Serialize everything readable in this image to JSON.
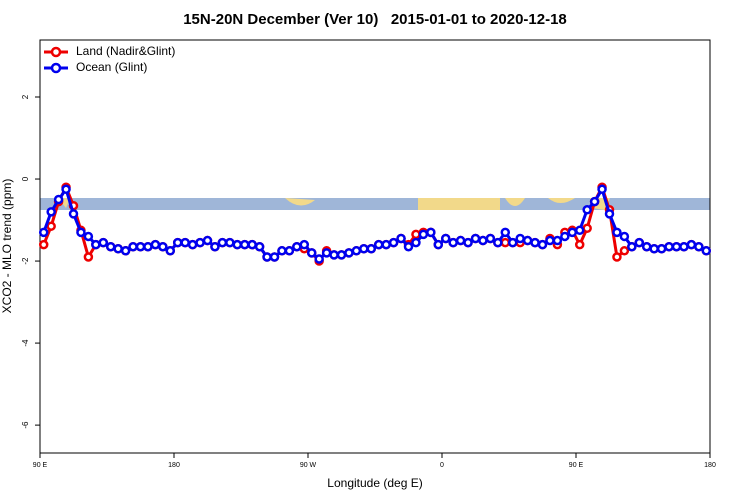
{
  "chart_data": {
    "type": "line",
    "title": "15N-20N December (Ver 10)   2015-01-01 to 2020-12-18",
    "xlabel": "Longitude (deg E)",
    "ylabel": "XCO2 - MLO trend (ppm)",
    "xlim": [
      90,
      540
    ],
    "ylim": [
      -6.68,
      3.39
    ],
    "xticks": [
      {
        "value": 90,
        "label": "90 E"
      },
      180,
      {
        "value": 270,
        "label": "90 W"
      },
      {
        "value": 360,
        "label": "0"
      },
      {
        "value": 450,
        "label": "90 E"
      },
      {
        "value": 540,
        "label": "180"
      }
    ],
    "yticks": [
      -6,
      -4,
      -2,
      0,
      2
    ],
    "legend": "top-left",
    "x": [
      92.5,
      97.5,
      102.5,
      107.5,
      112.5,
      117.5,
      122.5,
      127.5,
      132.5,
      137.5,
      142.5,
      147.5,
      152.5,
      157.5,
      162.5,
      167.5,
      172.5,
      177.5,
      182.5,
      187.5,
      192.5,
      197.5,
      202.5,
      207.5,
      212.5,
      217.5,
      222.5,
      227.5,
      232.5,
      237.5,
      242.5,
      247.5,
      252.5,
      257.5,
      262.5,
      267.5,
      272.5,
      277.5,
      282.5,
      287.5,
      292.5,
      297.5,
      302.5,
      307.5,
      312.5,
      317.5,
      322.5,
      327.5,
      332.5,
      337.5,
      342.5,
      347.5,
      352.5,
      357.5,
      362.5,
      367.5,
      372.5,
      377.5,
      382.5,
      387.5,
      392.5,
      397.5,
      402.5,
      407.5,
      412.5,
      417.5,
      422.5,
      427.5,
      432.5,
      437.5,
      442.5,
      447.5,
      452.5,
      457.5,
      462.5,
      467.5,
      472.5,
      477.5,
      482.5,
      487.5,
      492.5,
      497.5,
      502.5,
      507.5,
      512.5,
      517.5,
      522.5,
      527.5,
      532.5,
      537.5
    ],
    "series": [
      {
        "name": "Land (Nadir&Glint)",
        "color": "#ee0000",
        "values": [
          -1.6,
          -1.15,
          -0.55,
          -0.2,
          -0.65,
          -1.25,
          -1.9,
          -1.6,
          -1.55,
          -1.65,
          -1.7,
          -1.75,
          -1.65,
          -1.65,
          -1.65,
          -1.6,
          -1.65,
          -1.75,
          -1.55,
          -1.55,
          -1.6,
          -1.55,
          -1.5,
          -1.65,
          -1.55,
          -1.55,
          -1.6,
          -1.6,
          -1.6,
          -1.65,
          -1.9,
          -1.9,
          -1.75,
          -1.75,
          -1.65,
          -1.7,
          -1.8,
          -2.0,
          -1.75,
          -1.85,
          -1.85,
          -1.8,
          -1.75,
          -1.7,
          -1.7,
          -1.6,
          -1.6,
          -1.55,
          -1.45,
          -1.6,
          -1.35,
          -1.3,
          -1.3,
          -1.6,
          -1.45,
          -1.55,
          -1.5,
          -1.55,
          -1.45,
          -1.5,
          -1.45,
          -1.55,
          -1.55,
          -1.55,
          -1.55,
          -1.5,
          -1.55,
          -1.6,
          -1.45,
          -1.6,
          -1.3,
          -1.25,
          -1.6,
          -1.2,
          -0.55,
          -0.2,
          -0.75,
          -1.9,
          -1.75,
          -1.65,
          -1.55,
          -1.65,
          -1.7,
          -1.7,
          -1.65,
          -1.65,
          -1.65,
          -1.6,
          -1.65,
          -1.75
        ]
      },
      {
        "name": "Ocean (Glint)",
        "color": "#0000ee",
        "values": [
          -1.3,
          -0.8,
          -0.5,
          -0.25,
          -0.85,
          -1.3,
          -1.4,
          -1.6,
          -1.55,
          -1.65,
          -1.7,
          -1.75,
          -1.65,
          -1.65,
          -1.65,
          -1.6,
          -1.65,
          -1.75,
          -1.55,
          -1.55,
          -1.6,
          -1.55,
          -1.5,
          -1.65,
          -1.55,
          -1.55,
          -1.6,
          -1.6,
          -1.6,
          -1.65,
          -1.9,
          -1.9,
          -1.75,
          -1.75,
          -1.65,
          -1.6,
          -1.8,
          -1.95,
          -1.8,
          -1.85,
          -1.85,
          -1.8,
          -1.75,
          -1.7,
          -1.7,
          -1.6,
          -1.6,
          -1.55,
          -1.45,
          -1.65,
          -1.55,
          -1.35,
          -1.3,
          -1.6,
          -1.45,
          -1.55,
          -1.5,
          -1.55,
          -1.45,
          -1.5,
          -1.45,
          -1.55,
          -1.3,
          -1.55,
          -1.45,
          -1.5,
          -1.55,
          -1.6,
          -1.5,
          -1.5,
          -1.4,
          -1.3,
          -1.25,
          -0.75,
          -0.55,
          -0.25,
          -0.85,
          -1.3,
          -1.4,
          -1.65,
          -1.55,
          -1.65,
          -1.7,
          -1.7,
          -1.65,
          -1.65,
          -1.65,
          -1.6,
          -1.65,
          -1.75
        ]
      }
    ]
  }
}
